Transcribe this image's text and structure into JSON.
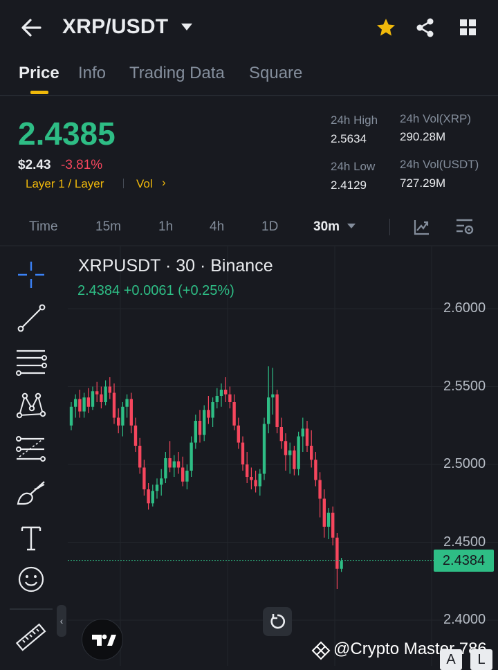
{
  "header": {
    "pair": "XRP/USDT"
  },
  "tabs": [
    {
      "label": "Price",
      "active": true
    },
    {
      "label": "Info"
    },
    {
      "label": "Trading Data"
    },
    {
      "label": "Square"
    }
  ],
  "price": {
    "last": "2.4385",
    "usd": "$2.43",
    "change": "-3.81%",
    "tag_layer": "Layer 1 / Layer",
    "tag_vol": "Vol",
    "high_label": "24h High",
    "high": "2.5634",
    "low_label": "24h Low",
    "low": "2.4129",
    "vol_base_label": "24h Vol(XRP)",
    "vol_base": "290.28M",
    "vol_quote_label": "24h Vol(USDT)",
    "vol_quote": "727.29M"
  },
  "timeframes": [
    "Time",
    "15m",
    "1h",
    "4h",
    "1D",
    "30m"
  ],
  "chart": {
    "title": "XRPUSDT · 30 · Binance",
    "subtitle": "2.4384  +0.0061 (+0.25%)",
    "last_badge": "2.4384"
  },
  "chart_data": {
    "type": "candlestick",
    "title": "XRPUSDT · 30 · Binance",
    "y_ticks": [
      "2.6000",
      "2.5500",
      "2.5000",
      "2.4500",
      "2.4000"
    ],
    "ylim": [
      2.392,
      2.615
    ],
    "last_price": 2.4384,
    "up_color": "#2ebd85",
    "down_color": "#f6465d",
    "candles": [
      [
        2.525,
        2.54,
        2.522,
        2.537
      ],
      [
        2.537,
        2.545,
        2.53,
        2.542
      ],
      [
        2.542,
        2.548,
        2.53,
        2.534
      ],
      [
        2.534,
        2.546,
        2.53,
        2.543
      ],
      [
        2.543,
        2.549,
        2.533,
        2.537
      ],
      [
        2.537,
        2.55,
        2.535,
        2.547
      ],
      [
        2.547,
        2.553,
        2.54,
        2.545
      ],
      [
        2.545,
        2.55,
        2.536,
        2.54
      ],
      [
        2.54,
        2.554,
        2.538,
        2.55
      ],
      [
        2.55,
        2.556,
        2.542,
        2.546
      ],
      [
        2.546,
        2.552,
        2.526,
        2.53
      ],
      [
        2.53,
        2.536,
        2.52,
        2.525
      ],
      [
        2.525,
        2.54,
        2.518,
        2.537
      ],
      [
        2.537,
        2.545,
        2.53,
        2.542
      ],
      [
        2.542,
        2.546,
        2.52,
        2.525
      ],
      [
        2.525,
        2.53,
        2.508,
        2.512
      ],
      [
        2.512,
        2.517,
        2.494,
        2.498
      ],
      [
        2.498,
        2.503,
        2.48,
        2.484
      ],
      [
        2.484,
        2.488,
        2.471,
        2.475
      ],
      [
        2.475,
        2.487,
        2.473,
        2.483
      ],
      [
        2.483,
        2.491,
        2.478,
        2.487
      ],
      [
        2.487,
        2.497,
        2.48,
        2.491
      ],
      [
        2.491,
        2.508,
        2.488,
        2.504
      ],
      [
        2.504,
        2.515,
        2.495,
        2.498
      ],
      [
        2.498,
        2.506,
        2.492,
        2.502
      ],
      [
        2.502,
        2.508,
        2.494,
        2.498
      ],
      [
        2.498,
        2.505,
        2.486,
        2.489
      ],
      [
        2.489,
        2.5,
        2.484,
        2.496
      ],
      [
        2.496,
        2.518,
        2.492,
        2.514
      ],
      [
        2.514,
        2.532,
        2.51,
        2.528
      ],
      [
        2.528,
        2.535,
        2.514,
        2.519
      ],
      [
        2.519,
        2.538,
        2.515,
        2.535
      ],
      [
        2.535,
        2.544,
        2.526,
        2.53
      ],
      [
        2.53,
        2.543,
        2.524,
        2.54
      ],
      [
        2.54,
        2.549,
        2.536,
        2.544
      ],
      [
        2.544,
        2.552,
        2.537,
        2.548
      ],
      [
        2.548,
        2.556,
        2.54,
        2.545
      ],
      [
        2.545,
        2.55,
        2.536,
        2.54
      ],
      [
        2.54,
        2.545,
        2.522,
        2.525
      ],
      [
        2.525,
        2.53,
        2.51,
        2.514
      ],
      [
        2.514,
        2.518,
        2.496,
        2.5
      ],
      [
        2.5,
        2.508,
        2.488,
        2.492
      ],
      [
        2.492,
        2.498,
        2.484,
        2.49
      ],
      [
        2.49,
        2.496,
        2.482,
        2.486
      ],
      [
        2.486,
        2.497,
        2.48,
        2.494
      ],
      [
        2.494,
        2.53,
        2.49,
        2.526
      ],
      [
        2.526,
        2.563,
        2.52,
        2.543
      ],
      [
        2.543,
        2.562,
        2.532,
        2.545
      ],
      [
        2.545,
        2.548,
        2.52,
        2.524
      ],
      [
        2.524,
        2.53,
        2.51,
        2.515
      ],
      [
        2.515,
        2.52,
        2.496,
        2.506
      ],
      [
        2.506,
        2.514,
        2.494,
        2.509
      ],
      [
        2.509,
        2.512,
        2.493,
        2.497
      ],
      [
        2.497,
        2.521,
        2.493,
        2.518
      ],
      [
        2.518,
        2.53,
        2.508,
        2.523
      ],
      [
        2.523,
        2.528,
        2.508,
        2.512
      ],
      [
        2.512,
        2.522,
        2.498,
        2.503
      ],
      [
        2.503,
        2.508,
        2.486,
        2.49
      ],
      [
        2.49,
        2.495,
        2.466,
        2.478
      ],
      [
        2.478,
        2.484,
        2.453,
        2.46
      ],
      [
        2.46,
        2.472,
        2.452,
        2.469
      ],
      [
        2.469,
        2.473,
        2.448,
        2.453
      ],
      [
        2.453,
        2.456,
        2.42,
        2.433
      ],
      [
        2.433,
        2.44,
        2.431,
        2.438
      ]
    ]
  },
  "watermark": "@Crypto Master 786",
  "corner_buttons": [
    "A",
    "L"
  ]
}
